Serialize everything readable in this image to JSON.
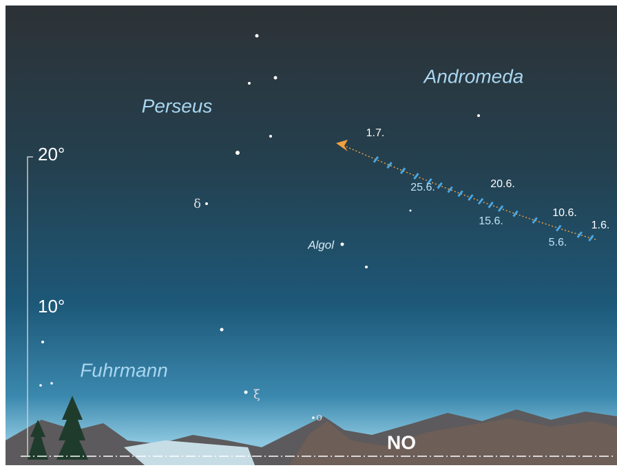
{
  "constellations": [
    "Andromeda",
    "Perseus",
    "Fuhrmann"
  ],
  "star_labels": [
    "δ",
    "Algol",
    "ξ",
    "o"
  ],
  "altitude_scale": [
    "20°",
    "10°"
  ],
  "path_dates": [
    "1.7.",
    "20.6.",
    "25.6.",
    "10.6.",
    "15.6.",
    "1.6.",
    "5.6."
  ],
  "direction": "NO"
}
